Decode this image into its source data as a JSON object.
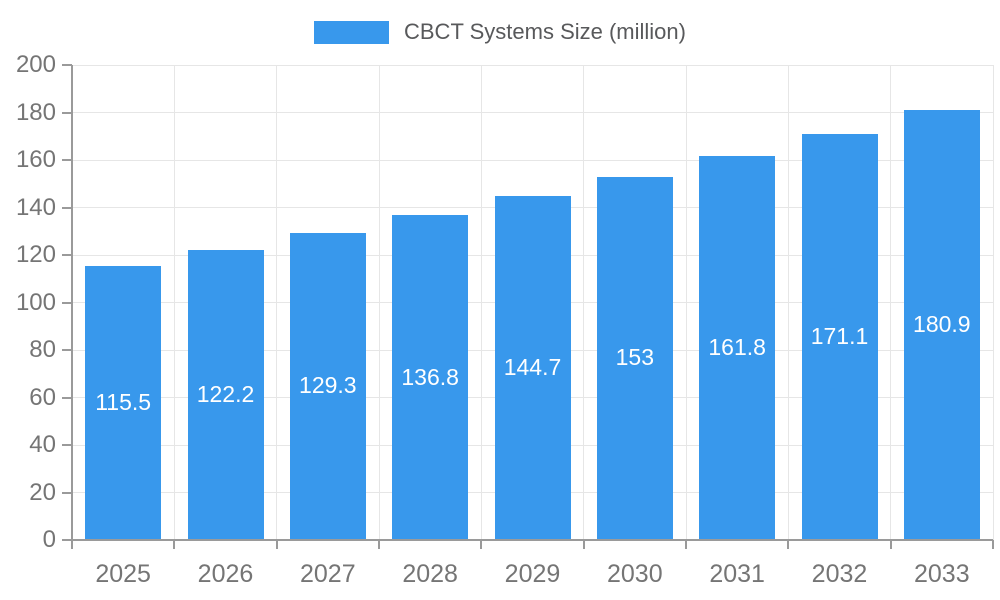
{
  "legend": {
    "label": "CBCT Systems Size (million)"
  },
  "chart_data": {
    "type": "bar",
    "title": "",
    "xlabel": "",
    "ylabel": "",
    "categories": [
      "2025",
      "2026",
      "2027",
      "2028",
      "2029",
      "2030",
      "2031",
      "2032",
      "2033"
    ],
    "series": [
      {
        "name": "CBCT Systems Size (million)",
        "values": [
          115.5,
          122.2,
          129.3,
          136.8,
          144.7,
          153,
          161.8,
          171.1,
          180.9
        ]
      }
    ],
    "value_labels": [
      "115.5",
      "122.2",
      "129.3",
      "136.8",
      "144.7",
      "153",
      "161.8",
      "171.1",
      "180.9"
    ],
    "ylim": [
      0,
      200
    ],
    "ytick_step": 20,
    "yticks": [
      0,
      20,
      40,
      60,
      80,
      100,
      120,
      140,
      160,
      180,
      200
    ],
    "grid": true,
    "legend_position": "top",
    "value_label_position": "center-inside",
    "colors": {
      "bar": "#3898EC",
      "axis_line": "#9a9a9a",
      "grid_line": "#e6e6e6",
      "tick_label": "#757575",
      "legend_text": "#58595b",
      "value_label": "#ffffff",
      "background": "#ffffff"
    }
  }
}
